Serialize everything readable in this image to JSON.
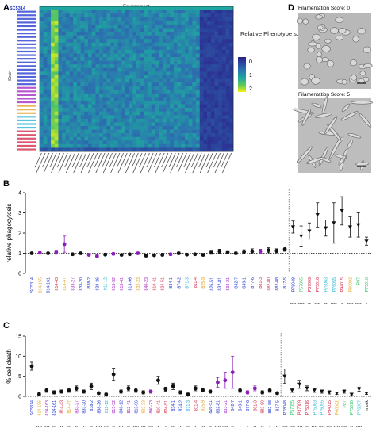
{
  "panel_labels": {
    "a": "A",
    "b": "B",
    "c": "C",
    "d": "D"
  },
  "heatmap": {
    "title": "Environment",
    "ylabel": "Strain",
    "first_row_label": "SC5314",
    "colorbar_title": "Relative Phenotype score",
    "colorbar_ticks": [
      "0",
      "1",
      "2"
    ],
    "colors": {
      "low": "#2a1f8a",
      "mid": "#1f9c9a",
      "high": "#f2f20e"
    }
  },
  "micrographs": {
    "top_label": "Filamentation Score: 0",
    "bottom_label": "Filamentation Score: 5"
  },
  "chart_data": [
    {
      "type": "scatter",
      "title": "",
      "xlabel": "",
      "ylabel": "relative phagocytosis",
      "ylim": [
        0,
        4
      ],
      "yticks": [
        0,
        1,
        2,
        3,
        4
      ],
      "reference_line": 1,
      "categories": [
        "SC5314",
        "814-155",
        "814-161",
        "814-43",
        "814-47",
        "833-27",
        "833-20",
        "838-2",
        "838-26",
        "811-12",
        "813-32",
        "813-41",
        "813-96",
        "832-23",
        "840-23",
        "810-41",
        "824-51",
        "834-1",
        "874-2",
        "871-3",
        "811-4",
        "825-9",
        "826-51",
        "832-81",
        "833-21",
        "842-7",
        "849-1",
        "877-6",
        "881-3",
        "882-80",
        "882-88",
        "817-5",
        "P78048",
        "P57055",
        "P37009",
        "P75016",
        "P75063",
        "P76055",
        "P94015",
        "P60002",
        "P87",
        "P75010"
      ],
      "values": [
        1.0,
        1.02,
        1.0,
        1.05,
        1.45,
        0.95,
        1.0,
        0.92,
        0.85,
        0.93,
        0.97,
        0.92,
        0.95,
        1.0,
        0.88,
        0.9,
        0.92,
        0.95,
        1.0,
        0.93,
        0.95,
        0.92,
        1.05,
        1.1,
        1.05,
        1.0,
        1.07,
        1.1,
        1.1,
        1.15,
        1.12,
        1.2,
        2.3,
        1.85,
        2.1,
        2.9,
        2.25,
        2.5,
        3.1,
        2.3,
        2.4,
        1.6
      ],
      "errors": [
        0.05,
        0.06,
        0.05,
        0.1,
        0.4,
        0.05,
        0.06,
        0.05,
        0.08,
        0.05,
        0.06,
        0.05,
        0.05,
        0.06,
        0.06,
        0.05,
        0.05,
        0.06,
        0.06,
        0.05,
        0.05,
        0.06,
        0.1,
        0.1,
        0.08,
        0.06,
        0.1,
        0.12,
        0.1,
        0.12,
        0.1,
        0.1,
        0.3,
        0.5,
        0.4,
        0.6,
        0.4,
        1.0,
        0.7,
        0.5,
        0.6,
        0.2
      ],
      "colors": [
        "#111111",
        "#8a1fb5",
        "#111111",
        "#8a1fb5",
        "#8a1fb5",
        "#111111",
        "#111111",
        "#8a1fb5",
        "#8a1fb5",
        "#111111",
        "#8a1fb5",
        "#111111",
        "#111111",
        "#8a1fb5",
        "#111111",
        "#111111",
        "#111111",
        "#8a1fb5",
        "#111111",
        "#111111",
        "#111111",
        "#111111",
        "#111111",
        "#111111",
        "#111111",
        "#111111",
        "#111111",
        "#111111",
        "#8a1fb5",
        "#111111",
        "#111111",
        "#111111",
        "#111111",
        "#111111",
        "#111111",
        "#111111",
        "#111111",
        "#111111",
        "#111111",
        "#111111",
        "#111111",
        "#111111"
      ],
      "shapes": [
        "circle",
        "circle",
        "circle",
        "circle",
        "circle",
        "circle",
        "circle",
        "circle",
        "circle",
        "circle",
        "circle",
        "circle",
        "circle",
        "circle",
        "circle",
        "circle",
        "circle",
        "circle",
        "circle",
        "circle",
        "circle",
        "circle",
        "circle",
        "circle",
        "circle",
        "circle",
        "circle",
        "circle",
        "circle",
        "circle",
        "circle",
        "circle",
        "triangle",
        "triangle",
        "triangle",
        "triangle",
        "triangle",
        "triangle",
        "triangle",
        "triangle",
        "triangle",
        "triangle"
      ],
      "significance": [
        "",
        "",
        "",
        "",
        "",
        "",
        "",
        "",
        "",
        "",
        "",
        "",
        "",
        "",
        "",
        "",
        "",
        "",
        "",
        "",
        "",
        "",
        "",
        "",
        "",
        "",
        "",
        "",
        "",
        "",
        "",
        "",
        "****",
        "****",
        "**",
        "****",
        "**",
        "****",
        "*",
        "****",
        "****",
        "*"
      ]
    },
    {
      "type": "scatter",
      "title": "",
      "xlabel": "",
      "ylabel": "% cell death",
      "ylim": [
        0,
        15
      ],
      "yticks": [
        0,
        5,
        10,
        15
      ],
      "reference_line": 0,
      "categories": [
        "SC5314",
        "814-155",
        "814-163",
        "814-161",
        "814-43",
        "814-47",
        "833-27",
        "833-20",
        "838-2",
        "838-26",
        "811-12",
        "813-32",
        "846-12",
        "813-41",
        "813-96",
        "832-23",
        "840-23",
        "810-41",
        "824-51",
        "834-1",
        "874-2",
        "871-3",
        "811-4",
        "825-9",
        "826-51",
        "832-81",
        "833-21",
        "842-7",
        "849-1",
        "877-6",
        "881-3",
        "882-80",
        "882-88",
        "817-5",
        "P78048",
        "P57055",
        "P37009",
        "P75016",
        "P75063",
        "P76055",
        "P94015",
        "P60002",
        "P87",
        "P75010",
        "P76067",
        "mock"
      ],
      "values": [
        7.5,
        0.5,
        1.5,
        1.0,
        1.2,
        1.5,
        2.0,
        1.2,
        2.5,
        0.8,
        0.5,
        5.5,
        1.2,
        2.0,
        1.5,
        1.0,
        1.2,
        4.0,
        1.8,
        2.5,
        1.0,
        0.5,
        2.0,
        1.5,
        1.2,
        3.5,
        4.0,
        6.0,
        1.5,
        1.0,
        2.0,
        1.0,
        1.5,
        0.8,
        5.0,
        1.5,
        3.0,
        2.0,
        1.5,
        1.2,
        1.0,
        0.8,
        1.2,
        0.5,
        1.8,
        0.8
      ],
      "errors": [
        1.0,
        0.4,
        0.5,
        0.4,
        0.4,
        0.5,
        0.6,
        0.4,
        0.8,
        0.3,
        0.3,
        1.5,
        0.4,
        0.6,
        0.5,
        0.4,
        0.4,
        1.0,
        0.5,
        0.8,
        0.4,
        0.3,
        0.6,
        0.4,
        0.4,
        1.2,
        2.0,
        4.0,
        0.5,
        0.4,
        0.6,
        0.4,
        0.5,
        0.3,
        1.8,
        0.5,
        1.0,
        0.6,
        0.5,
        0.4,
        0.4,
        0.3,
        0.4,
        0.3,
        0.5,
        0.3
      ],
      "colors": [
        "#111111",
        "#111111",
        "#111111",
        "#111111",
        "#111111",
        "#111111",
        "#111111",
        "#111111",
        "#111111",
        "#111111",
        "#111111",
        "#111111",
        "#111111",
        "#111111",
        "#111111",
        "#111111",
        "#8a1fb5",
        "#111111",
        "#111111",
        "#111111",
        "#111111",
        "#111111",
        "#111111",
        "#111111",
        "#111111",
        "#8a1fb5",
        "#8a1fb5",
        "#8a1fb5",
        "#111111",
        "#8a1fb5",
        "#8a1fb5",
        "#111111",
        "#111111",
        "#111111",
        "#111111",
        "#111111",
        "#111111",
        "#111111",
        "#111111",
        "#111111",
        "#111111",
        "#111111",
        "#111111",
        "#111111",
        "#111111",
        "#111111"
      ],
      "shapes": [
        "circle",
        "circle",
        "circle",
        "circle",
        "circle",
        "circle",
        "circle",
        "circle",
        "circle",
        "circle",
        "circle",
        "circle",
        "circle",
        "circle",
        "circle",
        "circle",
        "circle",
        "circle",
        "circle",
        "circle",
        "circle",
        "circle",
        "circle",
        "circle",
        "circle",
        "circle",
        "circle",
        "circle",
        "circle",
        "circle",
        "circle",
        "circle",
        "circle",
        "circle",
        "triangle",
        "triangle",
        "triangle",
        "triangle",
        "triangle",
        "triangle",
        "triangle",
        "triangle",
        "triangle",
        "triangle",
        "triangle",
        "triangle"
      ],
      "significance": [
        "",
        "****",
        "****",
        "***",
        "**",
        "**",
        "**",
        "*",
        "**",
        "****",
        "***",
        "**",
        "***",
        "**",
        "****",
        "***",
        "***",
        "*",
        "*",
        "***",
        "*",
        "**",
        "*",
        "***",
        "**",
        "****",
        "****",
        "**",
        "*",
        "*",
        "**",
        "**",
        "*",
        "**",
        "****",
        "****",
        "****",
        "***",
        "****",
        "****",
        "****",
        "****",
        "****",
        "**",
        "****",
        ""
      ]
    }
  ],
  "label_colors": {
    "blue": "#1a2fd0",
    "purple": "#a020c0",
    "orange": "#e0a020",
    "cyan": "#20b0d0",
    "red": "#d02040",
    "green": "#20c060",
    "black": "#111111"
  }
}
